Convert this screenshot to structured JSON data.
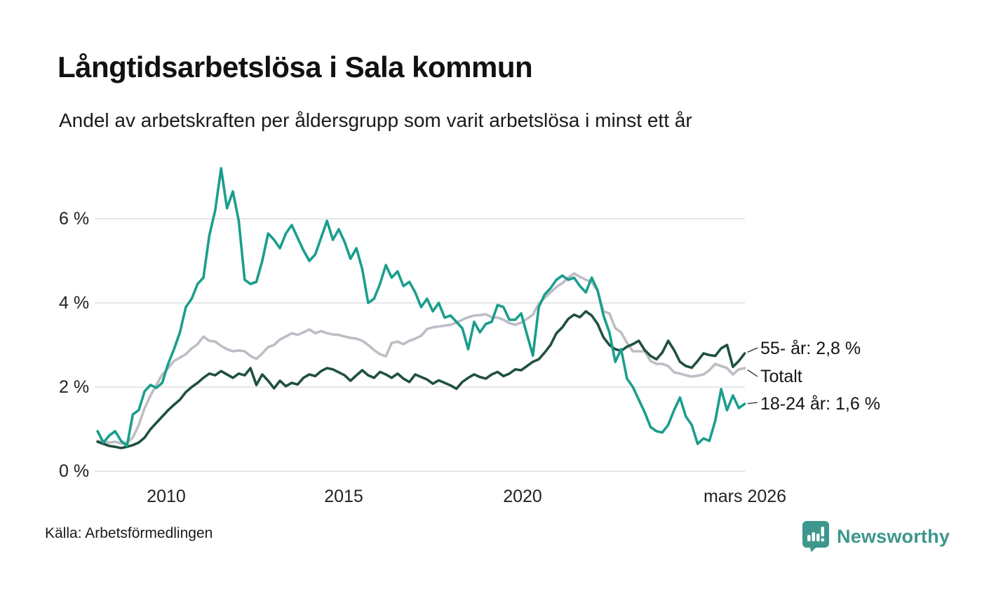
{
  "header": {
    "title": "Långtidsarbetslösa i Sala kommun",
    "subtitle": "Andel av arbetskraften per åldersgrupp som varit arbetslösa i minst ett år"
  },
  "footer": {
    "source": "Källa: Arbetsförmedlingen",
    "brand": "Newsworthy"
  },
  "colors": {
    "youth_teal": "#1a9e8c",
    "senior_dark_green": "#20503f",
    "total_gray": "#bdbdc6",
    "gridline": "#e3e3e5",
    "connector": "#2a2a2a",
    "brand_teal": "#3d978c"
  },
  "chart_data": {
    "type": "line",
    "title": "Långtidsarbetslösa i Sala kommun",
    "subtitle": "Andel av arbetskraften per åldersgrupp som varit arbetslösa i minst ett år",
    "unit": "% av arbetskraften",
    "grid": "horizontal",
    "legend_position": "right-end-labels",
    "x_axis": {
      "start": 2008.08,
      "end": 2026.17,
      "ticks": [
        {
          "label": "2010",
          "year": 2010
        },
        {
          "label": "2015",
          "year": 2015
        },
        {
          "label": "2020",
          "year": 2020
        },
        {
          "label": "mars 2026",
          "year": 2026.17
        }
      ]
    },
    "y_axis": {
      "min": 0,
      "max": 7.3,
      "ticks": [
        {
          "label": "6 %",
          "value": 6
        },
        {
          "label": "4 %",
          "value": 4
        },
        {
          "label": "2 %",
          "value": 2
        },
        {
          "label": "0 %",
          "value": 0
        }
      ]
    },
    "series": [
      {
        "id": "total",
        "name": "Totalt",
        "end_label": "Totalt",
        "latest_value": 2.45,
        "color": "#bdbdc6",
        "values": [
          0.72,
          0.7,
          0.68,
          0.7,
          0.66,
          0.68,
          0.8,
          1.1,
          1.5,
          1.8,
          2.05,
          2.3,
          2.45,
          2.62,
          2.7,
          2.78,
          2.92,
          3.02,
          3.2,
          3.1,
          3.08,
          2.98,
          2.9,
          2.85,
          2.87,
          2.85,
          2.74,
          2.67,
          2.8,
          2.95,
          3.0,
          3.13,
          3.2,
          3.28,
          3.24,
          3.3,
          3.37,
          3.28,
          3.33,
          3.28,
          3.25,
          3.24,
          3.2,
          3.17,
          3.15,
          3.1,
          3.0,
          2.88,
          2.78,
          2.73,
          3.05,
          3.08,
          3.02,
          3.1,
          3.15,
          3.22,
          3.38,
          3.42,
          3.44,
          3.46,
          3.48,
          3.53,
          3.6,
          3.66,
          3.7,
          3.71,
          3.73,
          3.66,
          3.65,
          3.6,
          3.52,
          3.48,
          3.53,
          3.62,
          3.72,
          3.98,
          4.12,
          4.25,
          4.38,
          4.47,
          4.6,
          4.7,
          4.62,
          4.55,
          4.5,
          4.28,
          3.8,
          3.75,
          3.4,
          3.3,
          3.05,
          2.85,
          2.85,
          2.85,
          2.62,
          2.55,
          2.55,
          2.5,
          2.35,
          2.32,
          2.28,
          2.25,
          2.27,
          2.3,
          2.4,
          2.55,
          2.5,
          2.45,
          2.3,
          2.42,
          2.45
        ]
      },
      {
        "id": "55plus",
        "name": "55- år",
        "end_label": "55- år: 2,8 %",
        "latest_value": 2.8,
        "color": "#20503f",
        "values": [
          0.7,
          0.65,
          0.6,
          0.58,
          0.55,
          0.58,
          0.62,
          0.68,
          0.8,
          1.0,
          1.15,
          1.3,
          1.45,
          1.58,
          1.7,
          1.88,
          2.0,
          2.1,
          2.22,
          2.32,
          2.28,
          2.38,
          2.3,
          2.22,
          2.32,
          2.28,
          2.45,
          2.05,
          2.3,
          2.15,
          1.97,
          2.15,
          2.02,
          2.1,
          2.06,
          2.22,
          2.3,
          2.26,
          2.38,
          2.45,
          2.42,
          2.35,
          2.28,
          2.15,
          2.28,
          2.4,
          2.28,
          2.22,
          2.36,
          2.3,
          2.22,
          2.32,
          2.2,
          2.12,
          2.3,
          2.24,
          2.18,
          2.08,
          2.16,
          2.1,
          2.04,
          1.96,
          2.12,
          2.22,
          2.3,
          2.24,
          2.2,
          2.3,
          2.36,
          2.26,
          2.32,
          2.42,
          2.4,
          2.5,
          2.6,
          2.66,
          2.82,
          3.0,
          3.28,
          3.42,
          3.62,
          3.72,
          3.66,
          3.8,
          3.7,
          3.5,
          3.18,
          3.0,
          2.9,
          2.86,
          2.96,
          3.02,
          3.1,
          2.88,
          2.74,
          2.66,
          2.82,
          3.1,
          2.88,
          2.6,
          2.5,
          2.46,
          2.62,
          2.8,
          2.76,
          2.74,
          2.92,
          3.0,
          2.48,
          2.62,
          2.8
        ]
      },
      {
        "id": "1824",
        "name": "18-24 år",
        "end_label": "18-24 år: 1,6 %",
        "latest_value": 1.6,
        "color": "#1a9e8c",
        "values": [
          0.95,
          0.68,
          0.85,
          0.95,
          0.72,
          0.6,
          1.35,
          1.45,
          1.9,
          2.05,
          1.98,
          2.1,
          2.55,
          2.9,
          3.3,
          3.9,
          4.1,
          4.45,
          4.6,
          5.6,
          6.2,
          7.2,
          6.25,
          6.65,
          5.95,
          4.55,
          4.45,
          4.5,
          5.0,
          5.65,
          5.5,
          5.3,
          5.65,
          5.85,
          5.55,
          5.25,
          5.0,
          5.15,
          5.55,
          5.95,
          5.5,
          5.75,
          5.45,
          5.05,
          5.3,
          4.8,
          4.0,
          4.1,
          4.45,
          4.9,
          4.6,
          4.75,
          4.4,
          4.5,
          4.25,
          3.9,
          4.1,
          3.8,
          4.0,
          3.65,
          3.7,
          3.55,
          3.4,
          2.9,
          3.55,
          3.3,
          3.5,
          3.55,
          3.95,
          3.9,
          3.6,
          3.6,
          3.75,
          3.25,
          2.75,
          3.9,
          4.2,
          4.35,
          4.55,
          4.65,
          4.55,
          4.6,
          4.4,
          4.25,
          4.6,
          4.3,
          3.7,
          3.3,
          2.6,
          2.9,
          2.2,
          2.0,
          1.7,
          1.4,
          1.05,
          0.95,
          0.92,
          1.1,
          1.45,
          1.75,
          1.3,
          1.1,
          0.65,
          0.78,
          0.72,
          1.2,
          1.95,
          1.45,
          1.8,
          1.5,
          1.6
        ]
      }
    ]
  }
}
